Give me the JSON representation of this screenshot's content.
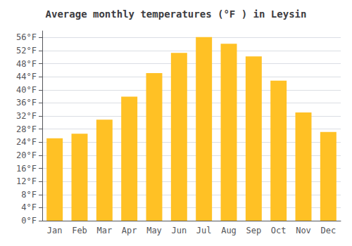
{
  "chart_data": {
    "type": "bar",
    "title": "Average monthly temperatures (°F ) in Leysin",
    "categories": [
      "Jan",
      "Feb",
      "Mar",
      "Apr",
      "May",
      "Jun",
      "Jul",
      "Aug",
      "Sep",
      "Oct",
      "Nov",
      "Dec"
    ],
    "values": [
      25.2,
      26.6,
      30.9,
      37.9,
      45.1,
      51.3,
      56.1,
      54.1,
      50.2,
      42.8,
      33.1,
      27.1
    ],
    "color": "#FFC125",
    "ylim": [
      0,
      58
    ],
    "yticks": [
      {
        "value": 0,
        "label": "0°F"
      },
      {
        "value": 4,
        "label": "4°F"
      },
      {
        "value": 8,
        "label": "8°F"
      },
      {
        "value": 12,
        "label": "12°F"
      },
      {
        "value": 16,
        "label": "16°F"
      },
      {
        "value": 20,
        "label": "20°F"
      },
      {
        "value": 24,
        "label": "24°F"
      },
      {
        "value": 28,
        "label": "28°F"
      },
      {
        "value": 32,
        "label": "32°F"
      },
      {
        "value": 36,
        "label": "36°F"
      },
      {
        "value": 40,
        "label": "40°F"
      },
      {
        "value": 44,
        "label": "44°F"
      },
      {
        "value": 48,
        "label": "48°F"
      },
      {
        "value": 52,
        "label": "52°F"
      },
      {
        "value": 56,
        "label": "56°F"
      }
    ],
    "grid": true
  }
}
